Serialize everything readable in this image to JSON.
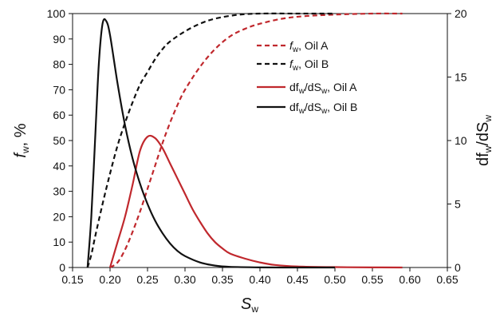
{
  "chart_data": {
    "type": "line",
    "x_range": [
      0.15,
      0.65
    ],
    "x_ticks": [
      "0.15",
      "0.20",
      "0.25",
      "0.30",
      "0.35",
      "0.40",
      "0.45",
      "0.50",
      "0.55",
      "0.60",
      "0.65"
    ],
    "y_left_range": [
      0,
      100
    ],
    "y_left_ticks": [
      "0",
      "10",
      "20",
      "30",
      "40",
      "50",
      "60",
      "70",
      "80",
      "90",
      "100"
    ],
    "y_right_range": [
      0,
      20
    ],
    "y_right_ticks": [
      "0",
      "5",
      "10",
      "15",
      "20"
    ],
    "grid": false,
    "legend_position": "top-right",
    "xlabel": {
      "main": "S",
      "sub": "w"
    },
    "ylabel_left": {
      "main": "f",
      "sub": "w",
      "suffix": ", %"
    },
    "ylabel_right": {
      "pre": "df",
      "sub1": "w",
      "mid": "/dS",
      "sub2": "w"
    },
    "series": [
      {
        "name": "fw, Oil A",
        "legend_parts": {
          "main": "f",
          "sub": "w",
          "rest": ", Oil A"
        },
        "axis": "left",
        "color": "#c0282d",
        "dash": true,
        "points": [
          [
            0.2,
            0
          ],
          [
            0.21,
            2
          ],
          [
            0.22,
            7
          ],
          [
            0.23,
            14
          ],
          [
            0.24,
            22
          ],
          [
            0.25,
            31
          ],
          [
            0.26,
            40
          ],
          [
            0.27,
            49
          ],
          [
            0.28,
            57
          ],
          [
            0.29,
            64
          ],
          [
            0.3,
            70
          ],
          [
            0.32,
            79
          ],
          [
            0.34,
            86
          ],
          [
            0.36,
            91
          ],
          [
            0.38,
            94
          ],
          [
            0.4,
            96
          ],
          [
            0.43,
            98
          ],
          [
            0.46,
            99
          ],
          [
            0.5,
            99.6
          ],
          [
            0.55,
            100
          ],
          [
            0.59,
            100
          ]
        ]
      },
      {
        "name": "fw, Oil B",
        "legend_parts": {
          "main": "f",
          "sub": "w",
          "rest": ", Oil B"
        },
        "axis": "left",
        "color": "#111111",
        "dash": true,
        "points": [
          [
            0.17,
            0
          ],
          [
            0.175,
            5
          ],
          [
            0.18,
            12
          ],
          [
            0.19,
            25
          ],
          [
            0.2,
            37
          ],
          [
            0.21,
            48
          ],
          [
            0.22,
            57
          ],
          [
            0.23,
            65
          ],
          [
            0.24,
            72
          ],
          [
            0.25,
            77
          ],
          [
            0.26,
            82
          ],
          [
            0.27,
            86
          ],
          [
            0.28,
            89
          ],
          [
            0.3,
            93
          ],
          [
            0.32,
            96
          ],
          [
            0.34,
            98
          ],
          [
            0.37,
            99.5
          ],
          [
            0.4,
            100
          ],
          [
            0.45,
            100
          ],
          [
            0.5,
            100
          ]
        ]
      },
      {
        "name": "dfw/dSw, Oil A",
        "legend_parts": {
          "pre": "df",
          "sub1": "w",
          "mid": "/dS",
          "sub2": "w",
          "rest": ", Oil A"
        },
        "axis": "right",
        "color": "#c0282d",
        "dash": false,
        "points": [
          [
            0.2,
            0
          ],
          [
            0.21,
            2
          ],
          [
            0.22,
            4
          ],
          [
            0.23,
            6.5
          ],
          [
            0.24,
            9.2
          ],
          [
            0.25,
            10.3
          ],
          [
            0.26,
            10.2
          ],
          [
            0.27,
            9.4
          ],
          [
            0.28,
            8.2
          ],
          [
            0.29,
            7.0
          ],
          [
            0.3,
            5.8
          ],
          [
            0.31,
            4.6
          ],
          [
            0.32,
            3.6
          ],
          [
            0.33,
            2.7
          ],
          [
            0.34,
            2.0
          ],
          [
            0.35,
            1.5
          ],
          [
            0.36,
            1.1
          ],
          [
            0.38,
            0.7
          ],
          [
            0.4,
            0.4
          ],
          [
            0.42,
            0.2
          ],
          [
            0.45,
            0.08
          ],
          [
            0.5,
            0.03
          ],
          [
            0.55,
            0.01
          ],
          [
            0.59,
            0
          ]
        ]
      },
      {
        "name": "dfw/dSw, Oil B",
        "legend_parts": {
          "pre": "df",
          "sub1": "w",
          "mid": "/dS",
          "sub2": "w",
          "rest": ", Oil B"
        },
        "axis": "right",
        "color": "#111111",
        "dash": false,
        "points": [
          [
            0.17,
            0
          ],
          [
            0.175,
            4
          ],
          [
            0.18,
            10
          ],
          [
            0.185,
            16
          ],
          [
            0.19,
            19.2
          ],
          [
            0.195,
            19.4
          ],
          [
            0.2,
            18.3
          ],
          [
            0.21,
            14.5
          ],
          [
            0.22,
            11.2
          ],
          [
            0.23,
            8.6
          ],
          [
            0.24,
            6.6
          ],
          [
            0.25,
            5.0
          ],
          [
            0.26,
            3.7
          ],
          [
            0.27,
            2.7
          ],
          [
            0.28,
            1.9
          ],
          [
            0.29,
            1.3
          ],
          [
            0.3,
            0.9
          ],
          [
            0.32,
            0.4
          ],
          [
            0.34,
            0.15
          ],
          [
            0.36,
            0.05
          ],
          [
            0.4,
            0.01
          ],
          [
            0.45,
            0
          ],
          [
            0.5,
            0
          ]
        ]
      }
    ]
  }
}
